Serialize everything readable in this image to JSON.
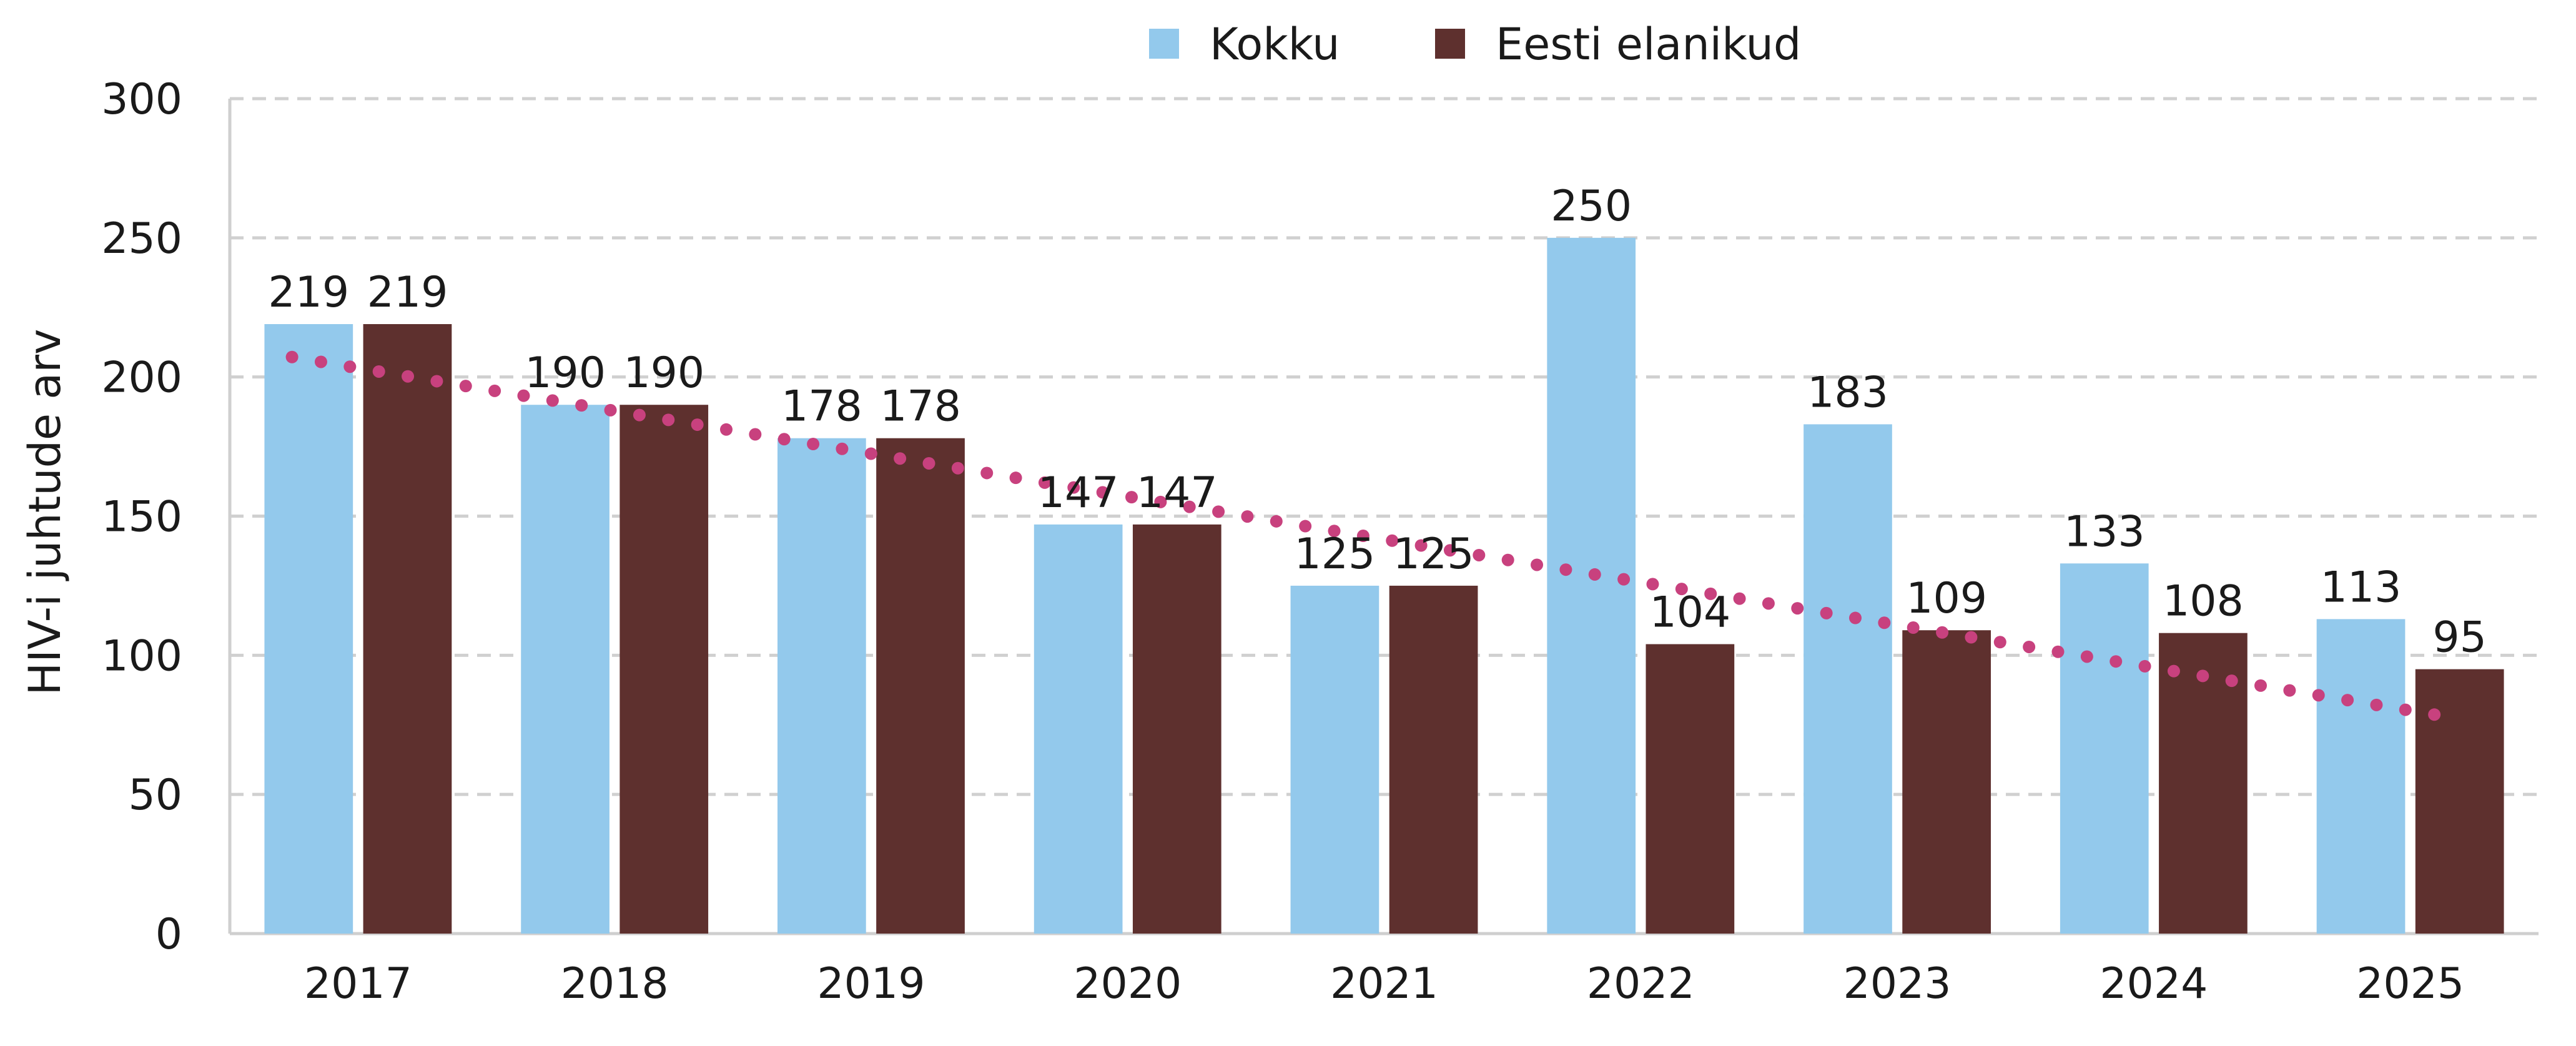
{
  "chart_data": {
    "type": "bar",
    "title": "",
    "xlabel": "",
    "ylabel": "HIV-i juhtude arv",
    "ylim": [
      0,
      300
    ],
    "yticks": [
      0,
      50,
      100,
      150,
      200,
      250,
      300
    ],
    "grid": "horizontal dashed",
    "legend_position": "top",
    "categories": [
      "2017",
      "2018",
      "2019",
      "2020",
      "2021",
      "2022",
      "2023",
      "2024",
      "2025"
    ],
    "series": [
      {
        "name": "Kokku",
        "color": "#93C9EC",
        "values": [
          219,
          190,
          178,
          147,
          125,
          250,
          183,
          133,
          113
        ]
      },
      {
        "name": "Eesti elanikud",
        "color": "#5E302E",
        "values": [
          219,
          190,
          178,
          147,
          125,
          104,
          109,
          108,
          95
        ]
      }
    ],
    "trendline": {
      "type": "linear",
      "series": "Eesti elanikud",
      "style": "dotted",
      "color": "#C8417E"
    }
  }
}
